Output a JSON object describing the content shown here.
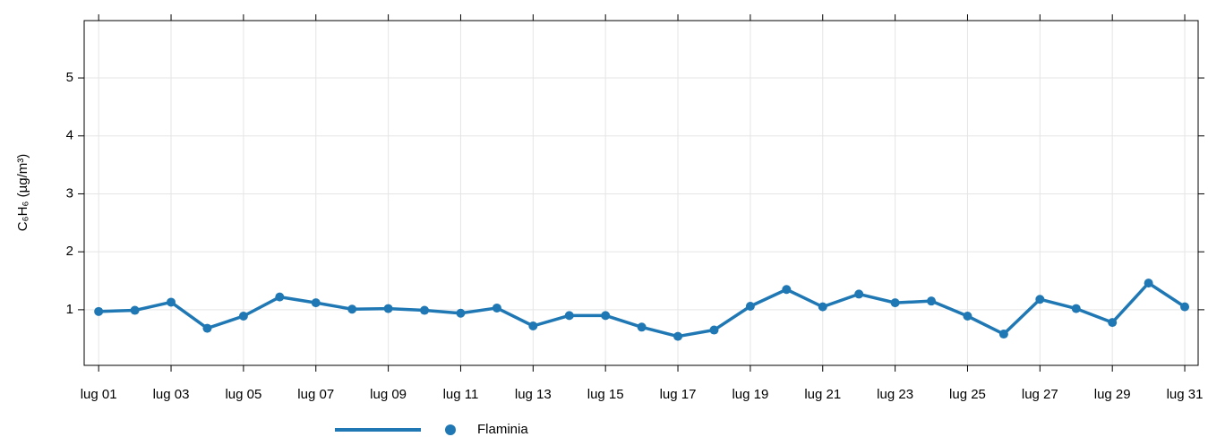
{
  "chart_data": {
    "type": "line",
    "y_label": "C₆H₆ (µg/m³)",
    "x": [
      1,
      2,
      3,
      4,
      5,
      6,
      7,
      8,
      9,
      10,
      11,
      12,
      13,
      14,
      15,
      16,
      17,
      18,
      19,
      20,
      21,
      22,
      23,
      24,
      25,
      26,
      27,
      28,
      29,
      30,
      31
    ],
    "series": [
      {
        "name": "Flaminia",
        "color": "#1f78b4",
        "values": [
          0.97,
          0.99,
          1.13,
          0.68,
          0.89,
          1.22,
          1.12,
          1.01,
          1.02,
          0.99,
          0.94,
          1.03,
          0.72,
          0.9,
          0.9,
          0.7,
          0.54,
          0.65,
          1.06,
          1.35,
          1.05,
          1.27,
          1.12,
          1.15,
          0.89,
          0.58,
          1.18,
          1.02,
          0.78,
          1.46,
          1.05
        ]
      }
    ],
    "xlim": [
      0.6,
      31.37
    ],
    "xticks": [
      {
        "value": 1,
        "label": "lug 01"
      },
      {
        "value": 3,
        "label": "lug 03"
      },
      {
        "value": 5,
        "label": "lug 05"
      },
      {
        "value": 7,
        "label": "lug 07"
      },
      {
        "value": 9,
        "label": "lug 09"
      },
      {
        "value": 11,
        "label": "lug 11"
      },
      {
        "value": 13,
        "label": "lug 13"
      },
      {
        "value": 15,
        "label": "lug 15"
      },
      {
        "value": 17,
        "label": "lug 17"
      },
      {
        "value": 19,
        "label": "lug 19"
      },
      {
        "value": 21,
        "label": "lug 21"
      },
      {
        "value": 23,
        "label": "lug 23"
      },
      {
        "value": 25,
        "label": "lug 25"
      },
      {
        "value": 27,
        "label": "lug 27"
      },
      {
        "value": 29,
        "label": "lug 29"
      },
      {
        "value": 31,
        "label": "lug 31"
      }
    ],
    "ylim": [
      0.04,
      5.99
    ],
    "yticks": [
      1,
      2,
      3,
      4,
      5
    ],
    "grid": true
  }
}
